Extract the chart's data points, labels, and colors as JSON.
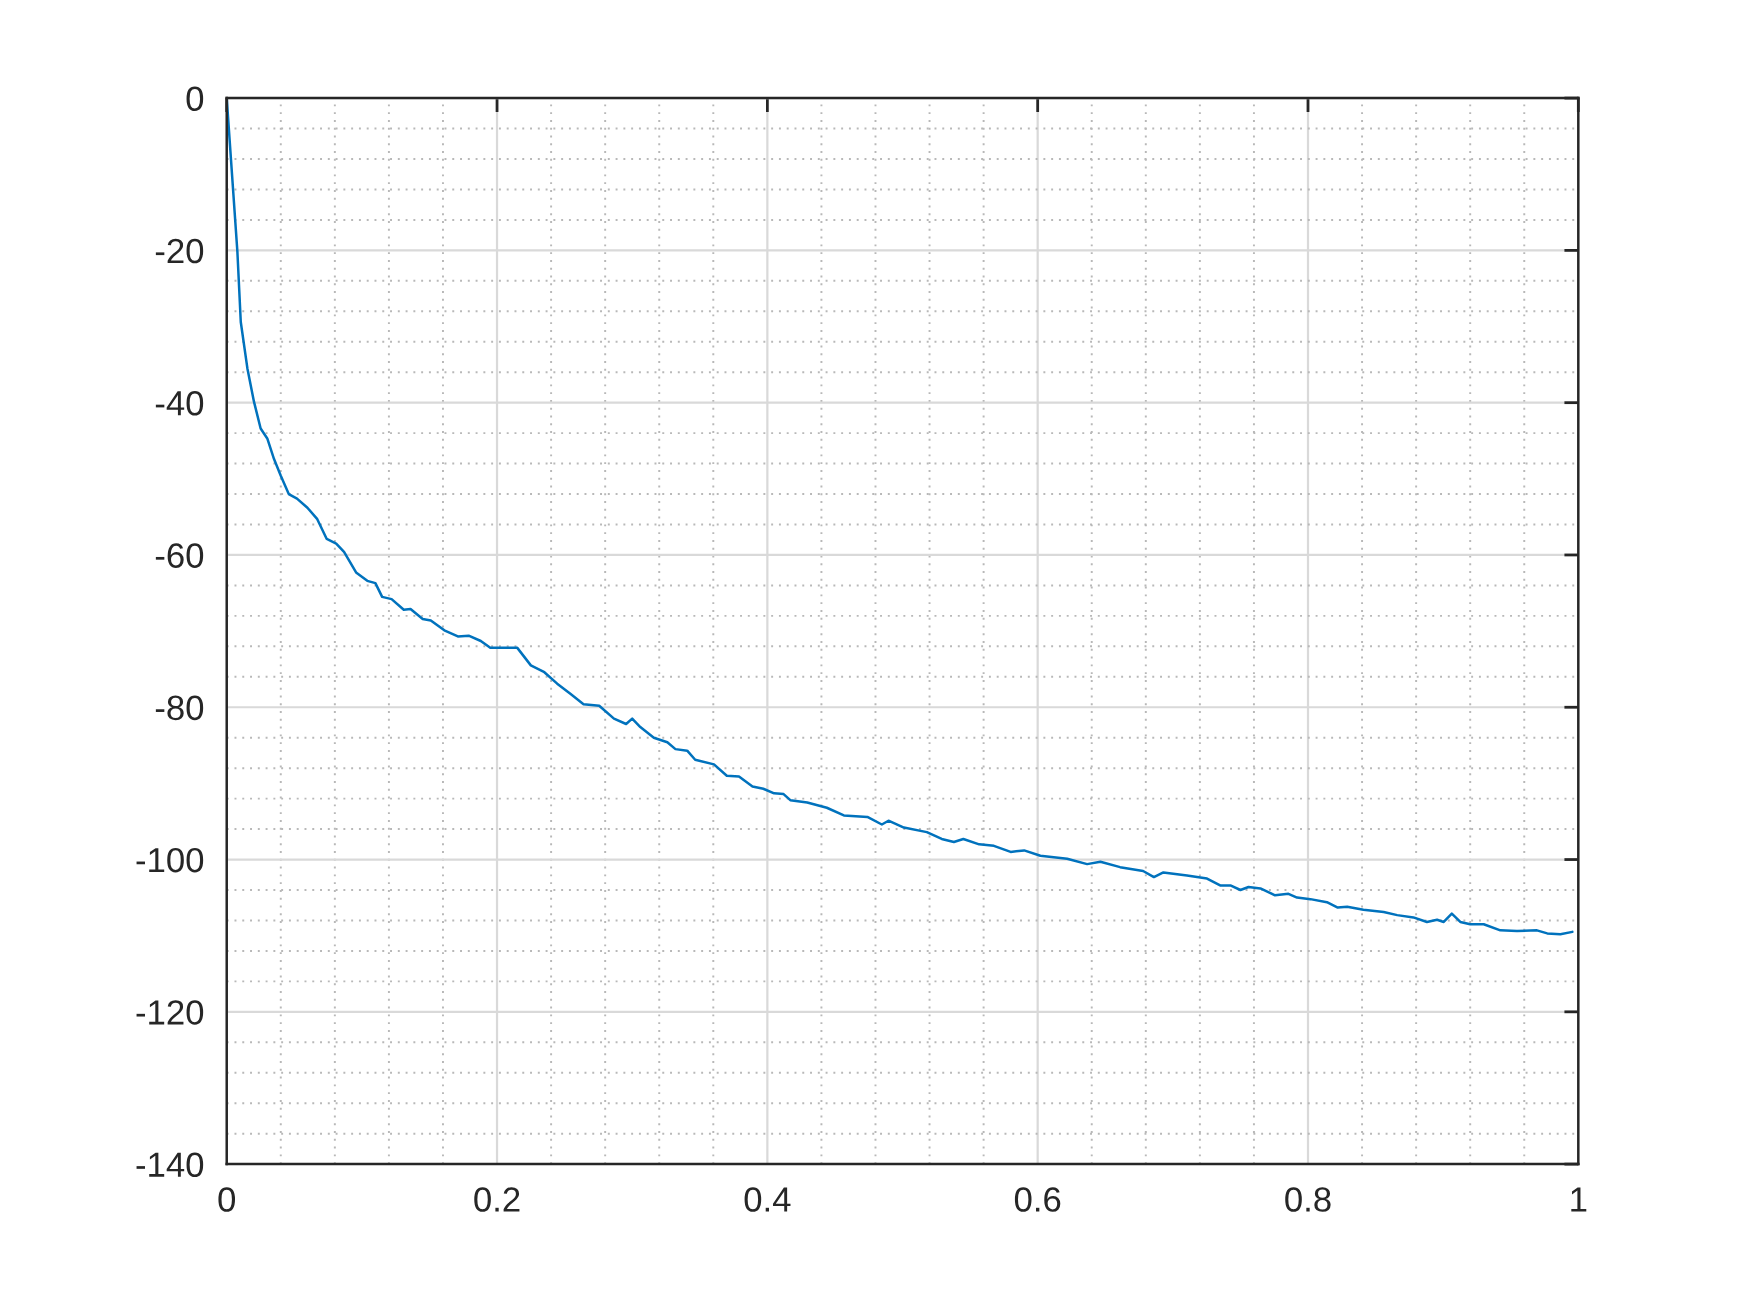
{
  "chart_data": {
    "type": "line",
    "x": [
      0,
      0.0079,
      0.0104,
      0.0153,
      0.0202,
      0.0251,
      0.03,
      0.035,
      0.04,
      0.0459,
      0.052,
      0.0597,
      0.067,
      0.074,
      0.081,
      0.0868,
      0.0957,
      0.104,
      0.11,
      0.115,
      0.122,
      0.131,
      0.136,
      0.145,
      0.151,
      0.161,
      0.171,
      0.179,
      0.188,
      0.195,
      0.2075,
      0.215,
      0.225,
      0.235,
      0.2445,
      0.254,
      0.264,
      0.2756,
      0.2865,
      0.2955,
      0.3,
      0.306,
      0.316,
      0.326,
      0.332,
      0.3407,
      0.3466,
      0.3605,
      0.37,
      0.379,
      0.389,
      0.397,
      0.405,
      0.412,
      0.417,
      0.4295,
      0.444,
      0.4566,
      0.474,
      0.4847,
      0.4896,
      0.501,
      0.518,
      0.529,
      0.538,
      0.545,
      0.5567,
      0.5676,
      0.58,
      0.59,
      0.602,
      0.6218,
      0.6366,
      0.6464,
      0.661,
      0.678,
      0.686,
      0.693,
      0.7105,
      0.7253,
      0.735,
      0.7426,
      0.75,
      0.756,
      0.7648,
      0.7756,
      0.7855,
      0.7919,
      0.8018,
      0.814,
      0.822,
      0.829,
      0.841,
      0.856,
      0.866,
      0.878,
      0.888,
      0.8955,
      0.9004,
      0.9064,
      0.9127,
      0.92,
      0.93,
      0.9423,
      0.9546,
      0.9694,
      0.977,
      0.9867,
      0.9956
    ],
    "series": [
      {
        "color": "#0072bd",
        "values": [
          0,
          -20.2,
          -29.4,
          -35.5,
          -39.9,
          -43.4,
          -44.7,
          -47.4,
          -49.6,
          -52.0,
          -52.6,
          -53.8,
          -55.3,
          -57.9,
          -58.5,
          -59.6,
          -62.3,
          -63.4,
          -63.7,
          -65.5,
          -65.8,
          -67.2,
          -67.1,
          -68.4,
          -68.6,
          -69.9,
          -70.7,
          -70.6,
          -71.3,
          -72.2,
          -72.2,
          -72.2,
          -74.5,
          -75.4,
          -76.9,
          -78.2,
          -79.6,
          -79.8,
          -81.5,
          -82.2,
          -81.5,
          -82.6,
          -84.0,
          -84.6,
          -85.5,
          -85.7,
          -86.9,
          -87.5,
          -89.0,
          -89.1,
          -90.4,
          -90.7,
          -91.3,
          -91.4,
          -92.2,
          -92.5,
          -93.2,
          -94.2,
          -94.4,
          -95.4,
          -94.9,
          -95.8,
          -96.4,
          -97.3,
          -97.7,
          -97.3,
          -98.0,
          -98.2,
          -99.0,
          -98.8,
          -99.5,
          -99.9,
          -100.6,
          -100.3,
          -101.0,
          -101.5,
          -102.3,
          -101.7,
          -102.1,
          -102.5,
          -103.4,
          -103.4,
          -104.0,
          -103.6,
          -103.8,
          -104.7,
          -104.5,
          -105.0,
          -105.2,
          -105.6,
          -106.3,
          -106.2,
          -106.6,
          -106.9,
          -107.3,
          -107.6,
          -108.2,
          -107.9,
          -108.2,
          -107.1,
          -108.2,
          -108.5,
          -108.5,
          -109.3,
          -109.4,
          -109.3,
          -109.7,
          -109.8,
          -109.5
        ]
      }
    ],
    "xlim": [
      0,
      1
    ],
    "xticks": [
      0,
      0.2,
      0.4,
      0.6,
      0.8,
      1
    ],
    "ylim": [
      -140,
      0
    ],
    "yticks": [
      -140,
      -120,
      -100,
      -80,
      -60,
      -40,
      -20,
      0
    ],
    "grid": true,
    "line_style": "solid",
    "marker": "none",
    "legend": false
  }
}
